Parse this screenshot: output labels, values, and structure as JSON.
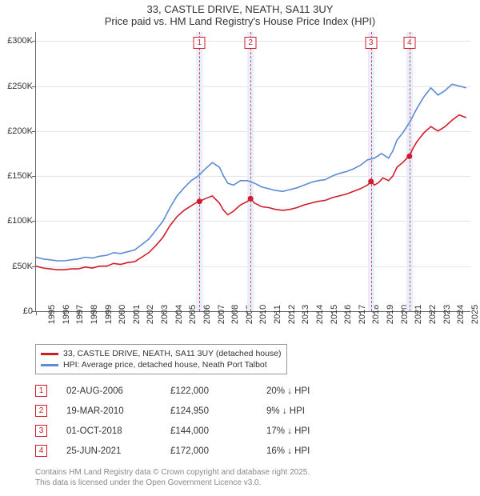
{
  "title": {
    "main": "33, CASTLE DRIVE, NEATH, SA11 3UY",
    "sub": "Price paid vs. HM Land Registry's House Price Index (HPI)"
  },
  "chart": {
    "type": "line",
    "background_color": "#ffffff",
    "grid_color": "#e5e5e5",
    "axis_color": "#666666",
    "x": {
      "min": 1995,
      "max": 2025.8,
      "ticks": [
        1995,
        1996,
        1997,
        1998,
        1999,
        2000,
        2001,
        2002,
        2003,
        2004,
        2005,
        2006,
        2007,
        2008,
        2009,
        2010,
        2011,
        2012,
        2013,
        2014,
        2015,
        2016,
        2017,
        2018,
        2019,
        2020,
        2021,
        2022,
        2023,
        2024,
        2025
      ]
    },
    "y": {
      "min": 0,
      "max": 310000,
      "ticks": [
        0,
        50000,
        100000,
        150000,
        200000,
        250000,
        300000
      ],
      "tick_labels": [
        "£0",
        "£50K",
        "£100K",
        "£150K",
        "£200K",
        "£250K",
        "£300K"
      ]
    },
    "label_fontsize": 11,
    "line_width": 1.6,
    "series": {
      "property": {
        "label": "33, CASTLE DRIVE, NEATH, SA11 3UY (detached house)",
        "color": "#d01c2a",
        "points": [
          [
            1995.0,
            50000
          ],
          [
            1995.5,
            48000
          ],
          [
            1996.0,
            47000
          ],
          [
            1996.5,
            46000
          ],
          [
            1997.0,
            46000
          ],
          [
            1997.5,
            47000
          ],
          [
            1998.0,
            47000
          ],
          [
            1998.5,
            49000
          ],
          [
            1999.0,
            48000
          ],
          [
            1999.5,
            50000
          ],
          [
            2000.0,
            50000
          ],
          [
            2000.5,
            53000
          ],
          [
            2001.0,
            52000
          ],
          [
            2001.5,
            54000
          ],
          [
            2002.0,
            55000
          ],
          [
            2002.5,
            60000
          ],
          [
            2003.0,
            65000
          ],
          [
            2003.5,
            73000
          ],
          [
            2004.0,
            82000
          ],
          [
            2004.5,
            95000
          ],
          [
            2005.0,
            105000
          ],
          [
            2005.5,
            112000
          ],
          [
            2006.0,
            117000
          ],
          [
            2006.3,
            120000
          ],
          [
            2006.6,
            122000
          ],
          [
            2007.0,
            125000
          ],
          [
            2007.5,
            128000
          ],
          [
            2008.0,
            120000
          ],
          [
            2008.3,
            112000
          ],
          [
            2008.6,
            107000
          ],
          [
            2009.0,
            111000
          ],
          [
            2009.5,
            118000
          ],
          [
            2010.0,
            122000
          ],
          [
            2010.2,
            124950
          ],
          [
            2010.5,
            120000
          ],
          [
            2011.0,
            116000
          ],
          [
            2011.5,
            115000
          ],
          [
            2012.0,
            113000
          ],
          [
            2012.5,
            112000
          ],
          [
            2013.0,
            113000
          ],
          [
            2013.5,
            115000
          ],
          [
            2014.0,
            118000
          ],
          [
            2014.5,
            120000
          ],
          [
            2015.0,
            122000
          ],
          [
            2015.5,
            123000
          ],
          [
            2016.0,
            126000
          ],
          [
            2016.5,
            128000
          ],
          [
            2017.0,
            130000
          ],
          [
            2017.5,
            133000
          ],
          [
            2018.0,
            136000
          ],
          [
            2018.5,
            140000
          ],
          [
            2018.75,
            144000
          ],
          [
            2019.0,
            140000
          ],
          [
            2019.3,
            143000
          ],
          [
            2019.6,
            148000
          ],
          [
            2020.0,
            145000
          ],
          [
            2020.3,
            150000
          ],
          [
            2020.6,
            160000
          ],
          [
            2021.0,
            165000
          ],
          [
            2021.3,
            170000
          ],
          [
            2021.48,
            172000
          ],
          [
            2021.7,
            180000
          ],
          [
            2022.0,
            188000
          ],
          [
            2022.5,
            198000
          ],
          [
            2023.0,
            205000
          ],
          [
            2023.5,
            200000
          ],
          [
            2024.0,
            205000
          ],
          [
            2024.5,
            212000
          ],
          [
            2025.0,
            218000
          ],
          [
            2025.5,
            215000
          ]
        ],
        "sale_markers": [
          {
            "x": 2006.59,
            "y": 122000
          },
          {
            "x": 2010.21,
            "y": 124950
          },
          {
            "x": 2018.75,
            "y": 144000
          },
          {
            "x": 2021.48,
            "y": 172000
          }
        ]
      },
      "hpi": {
        "label": "HPI: Average price, detached house, Neath Port Talbot",
        "color": "#5b8bd4",
        "points": [
          [
            1995.0,
            60000
          ],
          [
            1995.5,
            58000
          ],
          [
            1996.0,
            57000
          ],
          [
            1996.5,
            56000
          ],
          [
            1997.0,
            56000
          ],
          [
            1997.5,
            57000
          ],
          [
            1998.0,
            58000
          ],
          [
            1998.5,
            60000
          ],
          [
            1999.0,
            59000
          ],
          [
            1999.5,
            61000
          ],
          [
            2000.0,
            62000
          ],
          [
            2000.5,
            65000
          ],
          [
            2001.0,
            64000
          ],
          [
            2001.5,
            66000
          ],
          [
            2002.0,
            68000
          ],
          [
            2002.5,
            74000
          ],
          [
            2003.0,
            80000
          ],
          [
            2003.5,
            90000
          ],
          [
            2004.0,
            100000
          ],
          [
            2004.5,
            115000
          ],
          [
            2005.0,
            128000
          ],
          [
            2005.5,
            137000
          ],
          [
            2006.0,
            145000
          ],
          [
            2006.5,
            150000
          ],
          [
            2007.0,
            158000
          ],
          [
            2007.5,
            165000
          ],
          [
            2008.0,
            160000
          ],
          [
            2008.3,
            150000
          ],
          [
            2008.6,
            142000
          ],
          [
            2009.0,
            140000
          ],
          [
            2009.5,
            145000
          ],
          [
            2010.0,
            145000
          ],
          [
            2010.5,
            142000
          ],
          [
            2011.0,
            138000
          ],
          [
            2011.5,
            136000
          ],
          [
            2012.0,
            134000
          ],
          [
            2012.5,
            133000
          ],
          [
            2013.0,
            135000
          ],
          [
            2013.5,
            137000
          ],
          [
            2014.0,
            140000
          ],
          [
            2014.5,
            143000
          ],
          [
            2015.0,
            145000
          ],
          [
            2015.5,
            146000
          ],
          [
            2016.0,
            150000
          ],
          [
            2016.5,
            153000
          ],
          [
            2017.0,
            155000
          ],
          [
            2017.5,
            158000
          ],
          [
            2018.0,
            162000
          ],
          [
            2018.5,
            168000
          ],
          [
            2019.0,
            170000
          ],
          [
            2019.5,
            175000
          ],
          [
            2020.0,
            170000
          ],
          [
            2020.3,
            178000
          ],
          [
            2020.6,
            190000
          ],
          [
            2021.0,
            198000
          ],
          [
            2021.5,
            210000
          ],
          [
            2022.0,
            225000
          ],
          [
            2022.5,
            238000
          ],
          [
            2023.0,
            248000
          ],
          [
            2023.5,
            240000
          ],
          [
            2024.0,
            245000
          ],
          [
            2024.5,
            252000
          ],
          [
            2025.0,
            250000
          ],
          [
            2025.5,
            248000
          ]
        ]
      }
    },
    "sale_bands": [
      {
        "num": "1",
        "x": 2006.59
      },
      {
        "num": "2",
        "x": 2010.21
      },
      {
        "num": "3",
        "x": 2018.75
      },
      {
        "num": "4",
        "x": 2021.48
      }
    ],
    "band_fill": "#e8eefc",
    "band_line_color": "#d44a5a",
    "marker_border": "#d01c2a",
    "marker_fill": "#ffffff"
  },
  "legend": {
    "border_color": "#999999",
    "fontsize": 10.5
  },
  "sales": [
    {
      "num": "1",
      "date": "02-AUG-2006",
      "price": "£122,000",
      "diff": "20% ↓ HPI"
    },
    {
      "num": "2",
      "date": "19-MAR-2010",
      "price": "£124,950",
      "diff": "9% ↓ HPI"
    },
    {
      "num": "3",
      "date": "01-OCT-2018",
      "price": "£144,000",
      "diff": "17% ↓ HPI"
    },
    {
      "num": "4",
      "date": "25-JUN-2021",
      "price": "£172,000",
      "diff": "16% ↓ HPI"
    }
  ],
  "footer": {
    "line1": "Contains HM Land Registry data © Crown copyright and database right 2025.",
    "line2": "This data is licensed under the Open Government Licence v3.0.",
    "color": "#888888",
    "fontsize": 10
  }
}
